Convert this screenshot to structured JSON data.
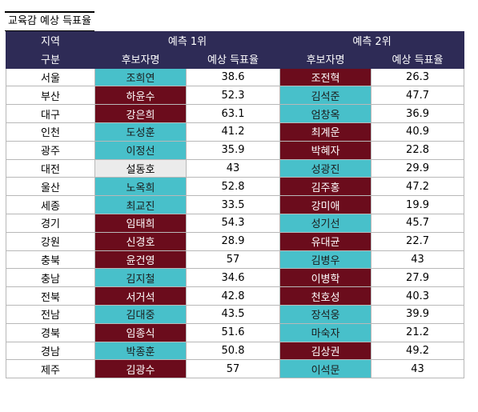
{
  "title": "교육감 예상 득표율",
  "colors": {
    "header_bg": "#2e2b56",
    "teal": "#48c0ca",
    "maroon": "#6b0c1c",
    "gray": "#ebebeb"
  },
  "header": {
    "row1": {
      "region": "지역",
      "rank1": "예측 1위",
      "rank2": "예측 2위"
    },
    "row2": {
      "category": "구분",
      "cand1": "후보자명",
      "pct1": "예상 득표율",
      "cand2": "후보자명",
      "pct2": "예상 득표율"
    }
  },
  "rows": [
    {
      "region": "서울",
      "rank1": {
        "name": "조희연",
        "pct": "38.6",
        "color": "teal"
      },
      "rank2": {
        "name": "조전혁",
        "pct": "26.3",
        "color": "maroon"
      }
    },
    {
      "region": "부산",
      "rank1": {
        "name": "하윤수",
        "pct": "52.3",
        "color": "maroon"
      },
      "rank2": {
        "name": "김석준",
        "pct": "47.7",
        "color": "teal"
      }
    },
    {
      "region": "대구",
      "rank1": {
        "name": "강은희",
        "pct": "63.1",
        "color": "maroon"
      },
      "rank2": {
        "name": "엄창옥",
        "pct": "36.9",
        "color": "teal"
      }
    },
    {
      "region": "인천",
      "rank1": {
        "name": "도성훈",
        "pct": "41.2",
        "color": "teal"
      },
      "rank2": {
        "name": "최계운",
        "pct": "40.9",
        "color": "maroon"
      }
    },
    {
      "region": "광주",
      "rank1": {
        "name": "이정선",
        "pct": "35.9",
        "color": "teal"
      },
      "rank2": {
        "name": "박혜자",
        "pct": "22.8",
        "color": "maroon"
      }
    },
    {
      "region": "대전",
      "rank1": {
        "name": "설동호",
        "pct": "43",
        "color": "gray"
      },
      "rank2": {
        "name": "성광진",
        "pct": "29.9",
        "color": "teal"
      }
    },
    {
      "region": "울산",
      "rank1": {
        "name": "노옥희",
        "pct": "52.8",
        "color": "teal"
      },
      "rank2": {
        "name": "김주홍",
        "pct": "47.2",
        "color": "maroon"
      }
    },
    {
      "region": "세종",
      "rank1": {
        "name": "최교진",
        "pct": "33.5",
        "color": "teal"
      },
      "rank2": {
        "name": "강미애",
        "pct": "19.9",
        "color": "maroon"
      }
    },
    {
      "region": "경기",
      "rank1": {
        "name": "임태희",
        "pct": "54.3",
        "color": "maroon"
      },
      "rank2": {
        "name": "성기선",
        "pct": "45.7",
        "color": "teal"
      }
    },
    {
      "region": "강원",
      "rank1": {
        "name": "신경호",
        "pct": "28.9",
        "color": "maroon"
      },
      "rank2": {
        "name": "유대균",
        "pct": "22.7",
        "color": "maroon"
      }
    },
    {
      "region": "충북",
      "rank1": {
        "name": "윤건영",
        "pct": "57",
        "color": "maroon"
      },
      "rank2": {
        "name": "김병우",
        "pct": "43",
        "color": "teal"
      }
    },
    {
      "region": "충남",
      "rank1": {
        "name": "김지철",
        "pct": "34.6",
        "color": "teal"
      },
      "rank2": {
        "name": "이병학",
        "pct": "27.9",
        "color": "maroon"
      }
    },
    {
      "region": "전북",
      "rank1": {
        "name": "서거석",
        "pct": "42.8",
        "color": "maroon"
      },
      "rank2": {
        "name": "천호성",
        "pct": "40.3",
        "color": "maroon"
      }
    },
    {
      "region": "전남",
      "rank1": {
        "name": "김대중",
        "pct": "43.5",
        "color": "teal"
      },
      "rank2": {
        "name": "장석웅",
        "pct": "39.9",
        "color": "teal"
      }
    },
    {
      "region": "경북",
      "rank1": {
        "name": "임종식",
        "pct": "51.6",
        "color": "maroon"
      },
      "rank2": {
        "name": "마숙자",
        "pct": "21.2",
        "color": "teal"
      }
    },
    {
      "region": "경남",
      "rank1": {
        "name": "박종훈",
        "pct": "50.8",
        "color": "teal"
      },
      "rank2": {
        "name": "김상권",
        "pct": "49.2",
        "color": "maroon"
      }
    },
    {
      "region": "제주",
      "rank1": {
        "name": "김광수",
        "pct": "57",
        "color": "maroon"
      },
      "rank2": {
        "name": "이석문",
        "pct": "43",
        "color": "teal"
      }
    }
  ]
}
